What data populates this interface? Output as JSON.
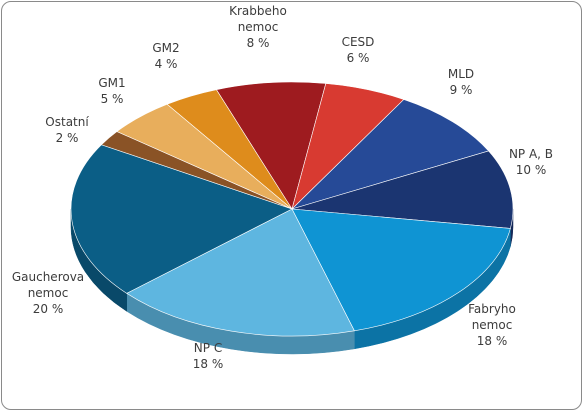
{
  "chart_data": {
    "type": "pie",
    "title": "",
    "slices": [
      {
        "name": "Krabbeho nemoc",
        "lines": [
          "Krabbeho",
          "nemoc"
        ],
        "value_label": "8 %",
        "value": 8,
        "color": "#9e1b1f"
      },
      {
        "name": "CESD",
        "lines": [
          "CESD"
        ],
        "value_label": "6 %",
        "value": 6,
        "color": "#d83a31"
      },
      {
        "name": "MLD",
        "lines": [
          "MLD"
        ],
        "value_label": "9 %",
        "value": 9,
        "color": "#264a97"
      },
      {
        "name": "NP A, B",
        "lines": [
          "NP A, B"
        ],
        "value_label": "10 %",
        "value": 10,
        "color": "#1b3571"
      },
      {
        "name": "Fabryho nemoc",
        "lines": [
          "Fabryho",
          "nemoc"
        ],
        "value_label": "18 %",
        "value": 18,
        "color": "#0f94d3"
      },
      {
        "name": "NP C",
        "lines": [
          "NP C"
        ],
        "value_label": "18 %",
        "value": 18,
        "color": "#5eb6e0"
      },
      {
        "name": "Gaucherova nemoc",
        "lines": [
          "Gaucherova",
          "nemoc"
        ],
        "value_label": "20 %",
        "value": 20,
        "color": "#0b5e86"
      },
      {
        "name": "Ostatní",
        "lines": [
          "Ostatní"
        ],
        "value_label": "2 %",
        "value": 2,
        "color": "#8a5326"
      },
      {
        "name": "GM1",
        "lines": [
          "GM1"
        ],
        "value_label": "5 %",
        "value": 5,
        "color": "#e8ae5c"
      },
      {
        "name": "GM2",
        "lines": [
          "GM2"
        ],
        "value_label": "4 %",
        "value": 4,
        "color": "#de8c1c"
      }
    ]
  }
}
